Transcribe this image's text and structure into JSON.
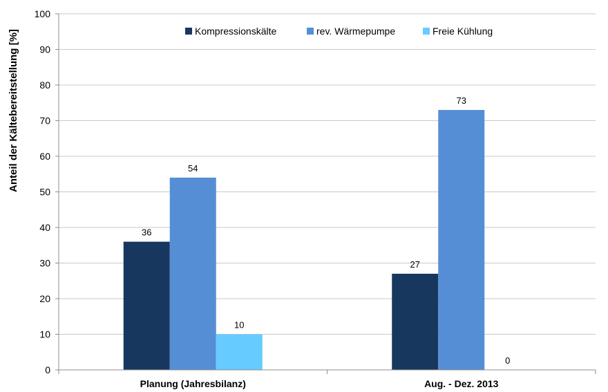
{
  "chart_data": {
    "type": "bar",
    "categories": [
      "Planung (Jahresbilanz)",
      "Aug. - Dez. 2013"
    ],
    "series": [
      {
        "name": "Kompressionskälte",
        "values": [
          36,
          27
        ],
        "color": "#17375e"
      },
      {
        "name": "rev. Wärmepumpe",
        "values": [
          54,
          73
        ],
        "color": "#558ed5"
      },
      {
        "name": "Freie Kühlung",
        "values": [
          10,
          0
        ],
        "color": "#66ccff"
      }
    ],
    "data_labels": [
      [
        "36",
        "27"
      ],
      [
        "54",
        "73"
      ],
      [
        "10",
        "0"
      ]
    ],
    "title": "",
    "xlabel": "",
    "ylabel": "Anteil der Kältebereitstellung [%]",
    "ylim": [
      0,
      100
    ],
    "yticks": [
      0,
      10,
      20,
      30,
      40,
      50,
      60,
      70,
      80,
      90,
      100
    ],
    "grid": true,
    "legend_position": "top"
  }
}
